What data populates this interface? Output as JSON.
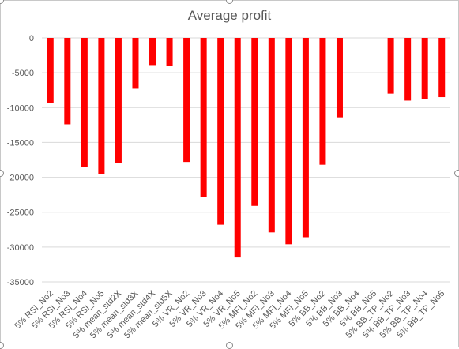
{
  "chart_data": {
    "type": "bar",
    "title": "Average profit",
    "xlabel": "",
    "ylabel": "",
    "ylim": [
      -35000,
      0
    ],
    "yticks": [
      0,
      -5000,
      -10000,
      -15000,
      -20000,
      -25000,
      -30000,
      -35000
    ],
    "grid": true,
    "legend": "none",
    "bar_color": "#ff0000",
    "categories": [
      "5% RSI_No2",
      "5% RSI_No3",
      "5% RSI_No4",
      "5% RSI_No5",
      "5% mean_std2X",
      "5% mean_std3X",
      "5% mean_std4X",
      "5% mean_std5X",
      "5% VR_No2",
      "5% VR_No3",
      "5% VR_No4",
      "5% VR_No5",
      "5% MFI_No2",
      "5% MFI_No3",
      "5% MFI_No4",
      "5% MFI_No5",
      "5% BB_No2",
      "5% BB_No3",
      "5% BB_No4",
      "5% BB_No5",
      "5% BB_TP_No2",
      "5% BB_TP_No3",
      "5% BB_TP_No4",
      "5% BB_TP_No5"
    ],
    "values": [
      -9300,
      -12400,
      -18500,
      -19500,
      -18000,
      -7300,
      -3900,
      -4000,
      -17800,
      -22800,
      -26800,
      -31500,
      -24100,
      -27900,
      -29600,
      -28600,
      -18200,
      -11400,
      0,
      0,
      -8000,
      -9000,
      -8800,
      -8500
    ]
  }
}
